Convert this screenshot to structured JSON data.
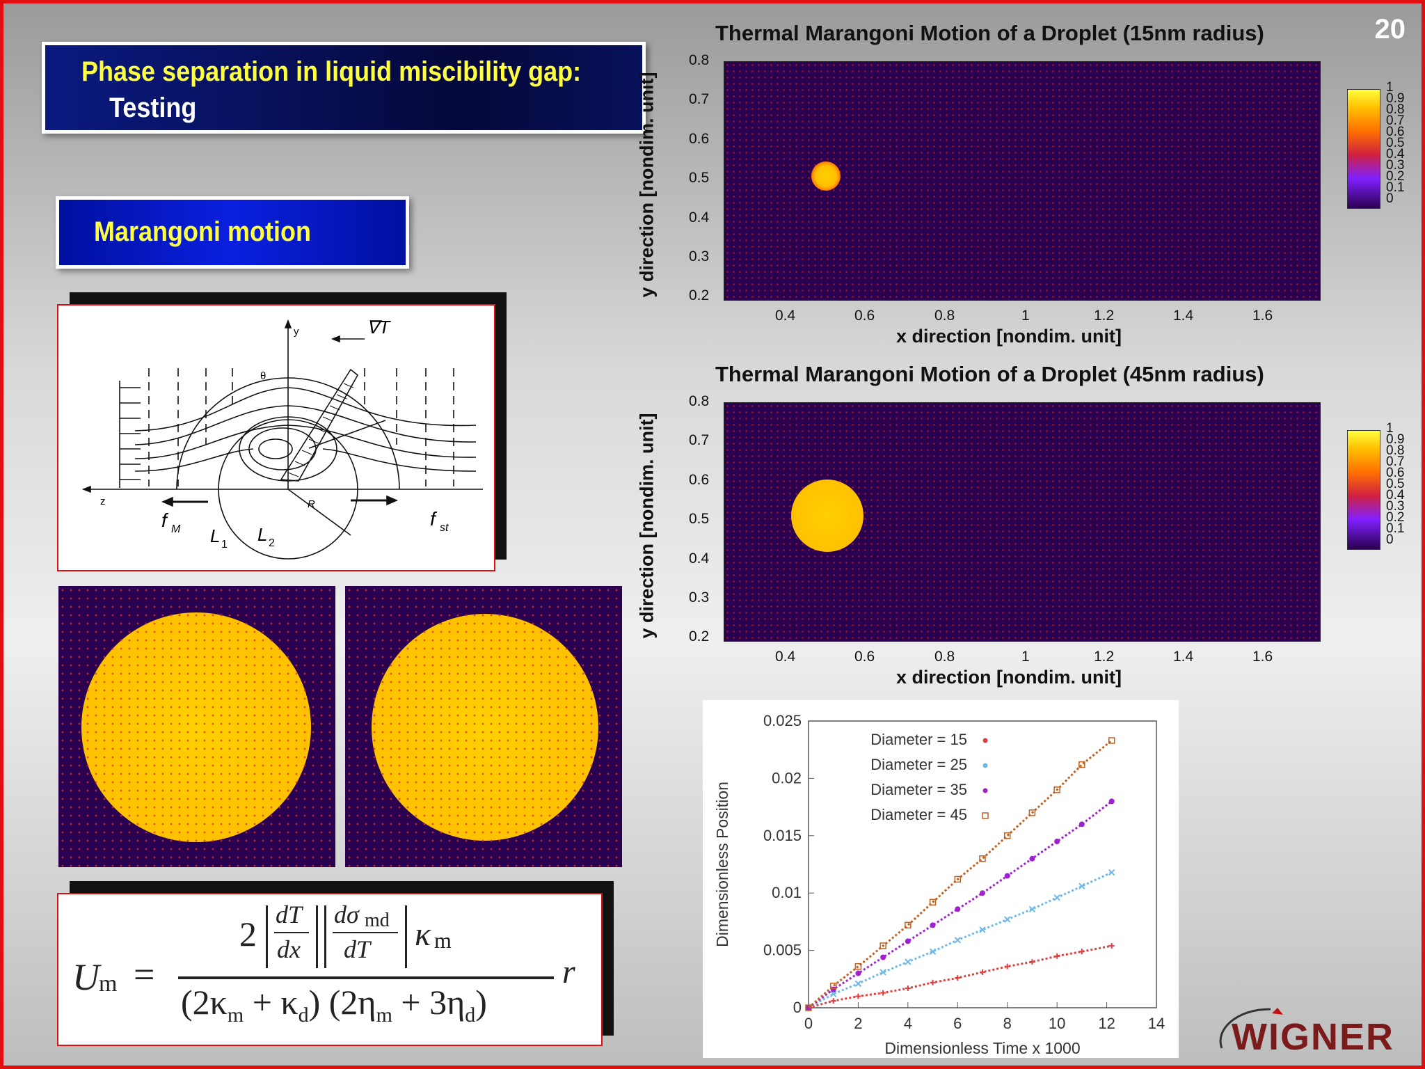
{
  "slide": {
    "number": "20",
    "title_line1": "Phase separation in liquid miscibility gap:",
    "title_line2": "Testing",
    "subtitle": "Marangoni motion"
  },
  "colors": {
    "frame": "#e01010",
    "title_text": "#ffff40",
    "title_bg": "#05083a",
    "field_bg": "#2a0050",
    "droplet": "#ffc000"
  },
  "diagram": {
    "labels": {
      "y": "y",
      "theta": "θ",
      "z": "z",
      "R": "R",
      "gradT": "∇T",
      "fM": "f",
      "fM_sub": "M",
      "fst": "f",
      "fst_sub": "st",
      "L1": "L",
      "L1_sub": "1",
      "L2": "L",
      "L2_sub": "2"
    }
  },
  "formula": {
    "lhs": "U",
    "lhs_sub": "m",
    "equals": "=",
    "num_2": "2",
    "dT": "dT",
    "dx": "dx",
    "dsigma": "dσ",
    "dsigma_sub": "md",
    "dT2": "dT",
    "kappa": "κ",
    "kappa_sub": "m",
    "den_a": "(2κ",
    "den_a_sub": "m",
    "den_b": " + κ",
    "den_b_sub": "d",
    "den_c": ") (2η",
    "den_c_sub": "m",
    "den_d": " + 3η",
    "den_d_sub": "d",
    "den_e": ")",
    "r": "r"
  },
  "heatmap_top": {
    "title": "Thermal Marangoni Motion of a Droplet (15nm radius)",
    "xlabel": "x direction [nondim. unit]",
    "ylabel": "y direction [nondim. unit]",
    "xticks": [
      "0.4",
      "0.6",
      "0.8",
      "1",
      "1.2",
      "1.4",
      "1.6"
    ],
    "yticks": [
      "0.8",
      "0.7",
      "0.6",
      "0.5",
      "0.4",
      "0.3",
      "0.2"
    ],
    "colorbar": [
      "1",
      "0.9",
      "0.8",
      "0.7",
      "0.6",
      "0.5",
      "0.4",
      "0.3",
      "0.2",
      "0.1",
      "0"
    ]
  },
  "heatmap_bottom": {
    "title": "Thermal Marangoni Motion of a Droplet (45nm radius)",
    "xlabel": "x direction [nondim. unit]",
    "ylabel": "y direction [nondim. unit]",
    "xticks": [
      "0.4",
      "0.6",
      "0.8",
      "1",
      "1.2",
      "1.4",
      "1.6"
    ],
    "yticks": [
      "0.8",
      "0.7",
      "0.6",
      "0.5",
      "0.4",
      "0.3",
      "0.2"
    ],
    "colorbar": [
      "1",
      "0.9",
      "0.8",
      "0.7",
      "0.6",
      "0.5",
      "0.4",
      "0.3",
      "0.2",
      "0.1",
      "0"
    ]
  },
  "chart_data": {
    "type": "scatter",
    "title": "",
    "xlabel": "Dimensionless Time x 1000",
    "ylabel": "Dimensionless Position",
    "xlim": [
      0,
      14
    ],
    "ylim": [
      0,
      0.025
    ],
    "xticks": [
      "0",
      "2",
      "4",
      "6",
      "8",
      "10",
      "12",
      "14"
    ],
    "yticks": [
      "0.025",
      "0.02",
      "0.015",
      "0.01",
      "0.005",
      "0"
    ],
    "legend_position": "top-left",
    "series": [
      {
        "name": "Diameter = 15",
        "color": "#e04040",
        "marker": "plus",
        "x": [
          0,
          1,
          2,
          3,
          4,
          5,
          6,
          7,
          8,
          9,
          10,
          11,
          12.2
        ],
        "y": [
          0,
          0.0006,
          0.001,
          0.0013,
          0.0017,
          0.0022,
          0.0026,
          0.0031,
          0.0036,
          0.004,
          0.0045,
          0.0049,
          0.0054
        ]
      },
      {
        "name": "Diameter = 25",
        "color": "#70b8e8",
        "marker": "cross",
        "x": [
          0,
          1,
          2,
          3,
          4,
          5,
          6,
          7,
          8,
          9,
          10,
          11,
          12.2
        ],
        "y": [
          0,
          0.0012,
          0.0021,
          0.0031,
          0.004,
          0.0049,
          0.0059,
          0.0068,
          0.0077,
          0.0086,
          0.0096,
          0.0106,
          0.0118
        ]
      },
      {
        "name": "Diameter = 35",
        "color": "#a020d0",
        "marker": "star",
        "x": [
          0,
          1,
          2,
          3,
          4,
          5,
          6,
          7,
          8,
          9,
          10,
          11,
          12.2
        ],
        "y": [
          0,
          0.0016,
          0.003,
          0.0044,
          0.0058,
          0.0072,
          0.0086,
          0.01,
          0.0115,
          0.013,
          0.0145,
          0.016,
          0.018
        ]
      },
      {
        "name": "Diameter = 45",
        "color": "#c06020",
        "marker": "square",
        "x": [
          0,
          1,
          2,
          3,
          4,
          5,
          6,
          7,
          8,
          9,
          10,
          11,
          12.2
        ],
        "y": [
          0,
          0.0019,
          0.0036,
          0.0054,
          0.0072,
          0.0092,
          0.0112,
          0.013,
          0.015,
          0.017,
          0.019,
          0.0212,
          0.0233
        ]
      }
    ]
  },
  "logo": "WIGNER"
}
